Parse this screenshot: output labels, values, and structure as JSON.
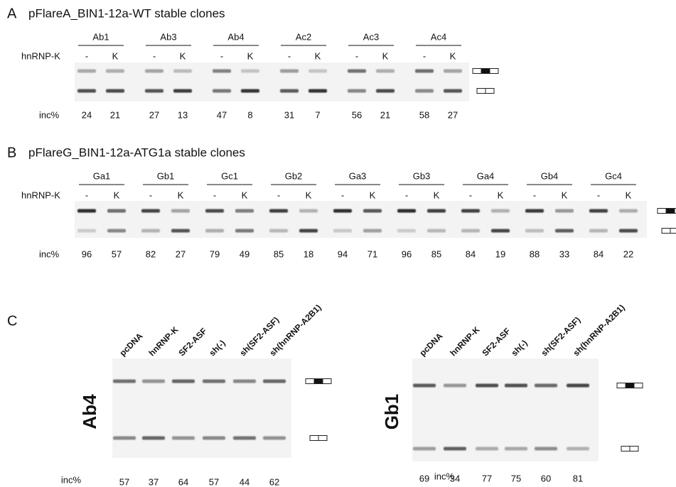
{
  "panels": [
    {
      "letter": "A",
      "title": "pFlareA_BIN1-12a-WT stable clones",
      "treatment_label": "hnRNP-K",
      "lane_labels": [
        "-",
        "K"
      ],
      "clones": [
        "Ab1",
        "Ab3",
        "Ab4",
        "Ac2",
        "Ac3",
        "Ac4"
      ],
      "inc_label": "inc%",
      "inc": [
        [
          24,
          21
        ],
        [
          27,
          13
        ],
        [
          47,
          8
        ],
        [
          31,
          7
        ],
        [
          56,
          21
        ],
        [
          58,
          27
        ]
      ]
    },
    {
      "letter": "B",
      "title": "pFlareG_BIN1-12a-ATG1a stable clones",
      "treatment_label": "hnRNP-K",
      "lane_labels": [
        "-",
        "K"
      ],
      "clones": [
        "Ga1",
        "Gb1",
        "Gc1",
        "Gb2",
        "Ga3",
        "Gb3",
        "Ga4",
        "Gb4",
        "Gc4"
      ],
      "inc_label": "inc%",
      "inc": [
        [
          96,
          57
        ],
        [
          82,
          27
        ],
        [
          79,
          49
        ],
        [
          85,
          18
        ],
        [
          94,
          71
        ],
        [
          96,
          85
        ],
        [
          84,
          19
        ],
        [
          88,
          33
        ],
        [
          84,
          22
        ]
      ]
    },
    {
      "letter": "C",
      "gels": [
        {
          "name": "Ab4",
          "lanes": [
            "pcDNA",
            "hnRNP-K",
            "SF2-ASF",
            "sh(-)",
            "sh(SF2-ASF)",
            "sh(hnRNP-A2B1)"
          ],
          "inc_label": "inc%",
          "inc": [
            57,
            37,
            64,
            57,
            44,
            62
          ]
        },
        {
          "name": "Gb1",
          "lanes": [
            "pcDNA",
            "hnRNP-K",
            "SF2-ASF",
            "sh(-)",
            "sh(SF2-ASF)",
            "sh(hnRNP-A2B1)"
          ],
          "inc_label": "inc%",
          "inc": [
            69,
            34,
            77,
            75,
            60,
            81
          ]
        }
      ]
    }
  ]
}
